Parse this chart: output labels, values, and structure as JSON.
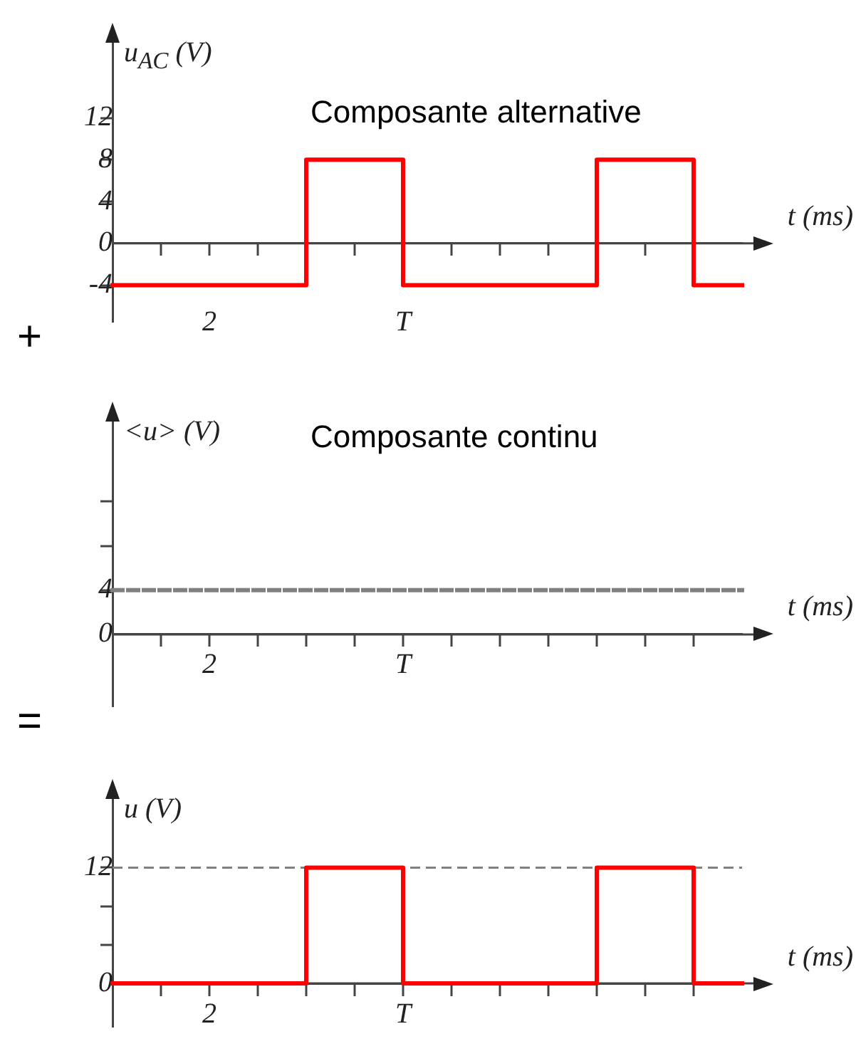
{
  "chart_data": [
    {
      "type": "step",
      "title": "Composante alternative",
      "ylabel": "u$_{AC}$ (V)",
      "xlabel": "t (ms)",
      "annotations": [
        "+"
      ],
      "categories": [
        null,
        null,
        "2",
        null,
        null,
        null,
        "T",
        null,
        null,
        null,
        null,
        null,
        null,
        null
      ],
      "ylim": [
        -7.5,
        20
      ],
      "yticks": [
        -4,
        0,
        4,
        8,
        12
      ],
      "grid": false,
      "legend": false,
      "marker": "none",
      "series": [
        {
          "color": "#ff0000",
          "values": [
            -4,
            -4,
            -4,
            -4,
            -4,
            8,
            8,
            -4,
            -4,
            -4,
            -4,
            8,
            8,
            -4
          ]
        }
      ]
    },
    {
      "type": "line",
      "title": "Composante continu",
      "ylabel": "<u> (V)",
      "xlabel": "t (ms)",
      "annotations": [
        "="
      ],
      "categories": [
        null,
        null,
        "2",
        null,
        null,
        null,
        "T",
        null,
        null,
        null,
        null,
        null,
        null,
        null
      ],
      "ylim": [
        -6.5,
        20
      ],
      "yticks": [
        0,
        4,
        {
          "value": 8,
          "label": null
        },
        {
          "value": 12,
          "label": null
        }
      ],
      "grid": false,
      "legend": false,
      "marker": "none",
      "series": [
        {
          "color": "#808080",
          "line_style": "dashed",
          "values": [
            4,
            4,
            4,
            4,
            4,
            4,
            4,
            4,
            4,
            4,
            4,
            4,
            4,
            4
          ]
        }
      ]
    },
    {
      "type": "step",
      "ylabel": "u (V)",
      "xlabel": "t (ms)",
      "categories": [
        null,
        null,
        "2",
        null,
        null,
        null,
        "T",
        null,
        null,
        null,
        null,
        null,
        null,
        null
      ],
      "ylim": [
        -4.5,
        20
      ],
      "yticks": [
        0,
        {
          "value": 4,
          "label": null
        },
        {
          "value": 8,
          "label": null
        },
        12
      ],
      "grid": false,
      "legend": false,
      "marker": "none",
      "ref_lines": [
        {
          "axis": "y",
          "value": 12,
          "color": "#808080",
          "line_style": "dashed"
        }
      ],
      "series": [
        {
          "color": "#ff0000",
          "values": [
            0,
            0,
            0,
            0,
            0,
            12,
            12,
            0,
            0,
            0,
            0,
            12,
            12,
            0
          ]
        }
      ]
    }
  ]
}
